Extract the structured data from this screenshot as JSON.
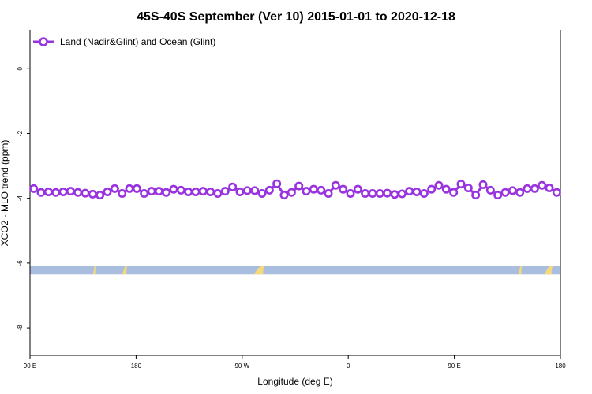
{
  "chart_data": {
    "type": "line",
    "title": "45S-40S September (Ver 10)   2015-01-01 to 2020-12-18",
    "xlabel": "Longitude (deg E)",
    "ylabel": "XCO2 - MLO trend (ppm)",
    "xlim": [
      90,
      450
    ],
    "ylim": [
      -8.85,
      1.2
    ],
    "x_ticks": [
      {
        "value": 90,
        "label": "90 E"
      },
      {
        "value": 162,
        "label": "180"
      },
      {
        "value": 234,
        "label": "90 W"
      },
      {
        "value": 306,
        "label": "0"
      },
      {
        "value": 378,
        "label": "90 E"
      },
      {
        "value": 450,
        "label": "180"
      }
    ],
    "y_ticks": [
      {
        "value": 0,
        "label": "0"
      },
      {
        "value": -2,
        "label": "-2"
      },
      {
        "value": -4,
        "label": "-4"
      },
      {
        "value": -6,
        "label": "-6"
      },
      {
        "value": -8,
        "label": "-8"
      }
    ],
    "legend": {
      "position": "top-left"
    },
    "series": [
      {
        "name": "Land (Nadir&Glint) and Ocean (Glint)",
        "color": "#9933e0",
        "x": [
          92.5,
          97.5,
          102.5,
          107.5,
          112.5,
          117.5,
          122.5,
          127.5,
          132.5,
          137.5,
          142.5,
          147.5,
          152.5,
          157.5,
          162.5,
          167.5,
          172.5,
          177.5,
          182.5,
          187.5,
          192.5,
          197.5,
          202.5,
          207.5,
          212.5,
          217.5,
          222.5,
          227.5,
          232.5,
          237.5,
          242.5,
          247.5,
          252.5,
          257.5,
          262.5,
          267.5,
          272.5,
          277.5,
          282.5,
          287.5,
          292.5,
          297.5,
          302.5,
          307.5,
          312.5,
          317.5,
          322.5,
          327.5,
          332.5,
          337.5,
          342.5,
          347.5,
          352.5,
          357.5,
          362.5,
          367.5,
          372.5,
          377.5,
          382.5,
          387.5,
          392.5,
          397.5,
          402.5,
          407.5,
          412.5,
          417.5,
          422.5,
          427.5,
          432.5,
          437.5,
          442.5,
          447.5
        ],
        "y": [
          -3.7,
          -3.82,
          -3.8,
          -3.82,
          -3.8,
          -3.78,
          -3.82,
          -3.84,
          -3.87,
          -3.9,
          -3.8,
          -3.7,
          -3.85,
          -3.7,
          -3.7,
          -3.85,
          -3.78,
          -3.78,
          -3.82,
          -3.72,
          -3.75,
          -3.8,
          -3.8,
          -3.78,
          -3.8,
          -3.85,
          -3.78,
          -3.65,
          -3.8,
          -3.76,
          -3.76,
          -3.85,
          -3.75,
          -3.55,
          -3.9,
          -3.82,
          -3.62,
          -3.78,
          -3.72,
          -3.75,
          -3.85,
          -3.6,
          -3.72,
          -3.85,
          -3.72,
          -3.85,
          -3.85,
          -3.85,
          -3.84,
          -3.88,
          -3.86,
          -3.78,
          -3.8,
          -3.85,
          -3.72,
          -3.6,
          -3.72,
          -3.82,
          -3.56,
          -3.68,
          -3.9,
          -3.58,
          -3.75,
          -3.9,
          -3.82,
          -3.76,
          -3.82,
          -3.7,
          -3.7,
          -3.6,
          -3.68,
          -3.82
        ]
      },
      {
        "x": [
          92.5,
          97.5,
          102.5,
          107.5,
          112.5,
          117.5,
          122.5,
          127.5,
          132.5,
          137.5,
          142.5,
          147.5,
          152.5,
          157.5,
          162.5,
          167.5,
          172.5,
          177.5,
          182.5,
          187.5,
          192.5,
          197.5,
          202.5,
          207.5,
          212.5,
          217.5,
          222.5,
          227.5,
          232.5,
          237.5,
          242.5,
          247.5,
          252.5,
          257.5,
          262.5,
          267.5,
          272.5,
          277.5,
          282.5,
          287.5,
          292.5,
          297.5,
          302.5,
          307.5,
          312.5,
          317.5,
          322.5,
          327.5,
          332.5,
          337.5,
          342.5,
          347.5,
          352.5,
          357.5,
          362.5,
          367.5,
          372.5,
          377.5,
          382.5,
          387.5,
          392.5,
          397.5,
          402.5,
          407.5,
          412.5,
          417.5,
          422.5,
          427.5,
          432.5,
          437.5,
          442.5,
          447.5
        ],
        "y": [
          -3.72,
          -3.78,
          -3.8,
          -3.8,
          -3.8,
          -3.8,
          -3.78,
          -3.84,
          -3.86,
          -3.85,
          -3.78,
          -3.75,
          -3.78,
          -3.72,
          -3.75,
          -3.78,
          -3.8,
          -3.78,
          -3.8,
          -3.75,
          -3.78,
          -3.78,
          -3.78,
          -3.8,
          -3.8,
          -3.82,
          -3.8,
          -3.7,
          -3.78,
          -3.74,
          -3.78,
          -3.82,
          -3.72,
          -3.65,
          -3.82,
          -3.8,
          -3.68,
          -3.75,
          -3.74,
          -3.75,
          -3.82,
          -3.68,
          -3.75,
          -3.82,
          -3.76,
          -3.8,
          -3.84,
          -3.84,
          -3.84,
          -3.86,
          -3.84,
          -3.8,
          -3.8,
          -3.8,
          -3.75,
          -3.68,
          -3.74,
          -3.78,
          -3.64,
          -3.7,
          -3.84,
          -3.66,
          -3.75,
          -3.84,
          -3.8,
          -3.78,
          -3.8,
          -3.74,
          -3.72,
          -3.66,
          -3.7,
          -3.78
        ]
      }
    ],
    "map_strip": {
      "y_range": [
        -6.35,
        -6.1
      ],
      "ocean_color": "#a9bedf",
      "land_color": "#f7d97a"
    }
  }
}
